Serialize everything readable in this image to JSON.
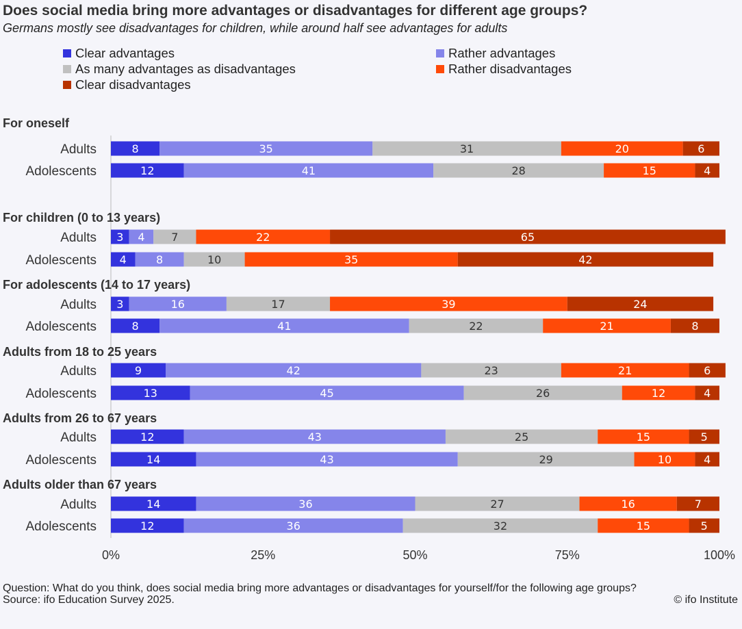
{
  "title": "Does social media bring more advantages or disadvantages for different age groups?",
  "subtitle": "Germans mostly see disadvantages for children, while around half see advantages for adults",
  "legend": [
    {
      "label": "Clear advantages",
      "color": "#3333dd"
    },
    {
      "label": "Rather advantages",
      "color": "#8585ea"
    },
    {
      "label": "As many advantages as disadvantages",
      "color": "#c0c0c0"
    },
    {
      "label": "Rather disadvantages",
      "color": "#ff4a08"
    },
    {
      "label": "Clear disadvantages",
      "color": "#b83300"
    }
  ],
  "chart_data": {
    "type": "bar",
    "orientation": "horizontal",
    "stacked": true,
    "series_names": [
      "Clear advantages",
      "Rather advantages",
      "As many advantages as disadvantages",
      "Rather disadvantages",
      "Clear disadvantages"
    ],
    "groups": [
      {
        "label": "For oneself",
        "rows": [
          {
            "label": "Adults",
            "values": [
              8,
              35,
              31,
              20,
              6
            ]
          },
          {
            "label": "Adolescents",
            "values": [
              12,
              41,
              28,
              15,
              4
            ]
          }
        ]
      },
      {
        "label": "For children (0 to 13 years)",
        "rows": [
          {
            "label": "Adults",
            "values": [
              3,
              4,
              7,
              22,
              65
            ]
          },
          {
            "label": "Adolescents",
            "values": [
              4,
              8,
              10,
              35,
              42
            ]
          }
        ]
      },
      {
        "label": "For adolescents (14 to 17 years)",
        "rows": [
          {
            "label": "Adults",
            "values": [
              3,
              16,
              17,
              39,
              24
            ]
          },
          {
            "label": "Adolescents",
            "values": [
              8,
              41,
              22,
              21,
              8
            ]
          }
        ]
      },
      {
        "label": "Adults from 18 to 25 years",
        "rows": [
          {
            "label": "Adults",
            "values": [
              9,
              42,
              23,
              21,
              6
            ]
          },
          {
            "label": "Adolescents",
            "values": [
              13,
              45,
              26,
              12,
              4
            ]
          }
        ]
      },
      {
        "label": "Adults from 26 to 67 years",
        "rows": [
          {
            "label": "Adults",
            "values": [
              12,
              43,
              25,
              15,
              5
            ]
          },
          {
            "label": "Adolescents",
            "values": [
              14,
              43,
              29,
              10,
              4
            ]
          }
        ]
      },
      {
        "label": "Adults older than 67 years",
        "rows": [
          {
            "label": "Adults",
            "values": [
              14,
              36,
              27,
              16,
              7
            ]
          },
          {
            "label": "Adolescents",
            "values": [
              12,
              36,
              32,
              15,
              5
            ]
          }
        ]
      }
    ],
    "x_ticks": [
      "0%",
      "25%",
      "50%",
      "75%",
      "100%"
    ],
    "xlim": [
      0,
      100
    ],
    "value_label_colors": [
      "#ffffff",
      "#ffffff",
      "#333333",
      "#ffffff",
      "#ffffff"
    ]
  },
  "footer": {
    "question": "Question: What do you think, does social media bring more advantages or disadvantages for yourself/for the following age groups?",
    "source": "Source: ifo Education Survey 2025.",
    "copyright": "© ifo Institute"
  }
}
